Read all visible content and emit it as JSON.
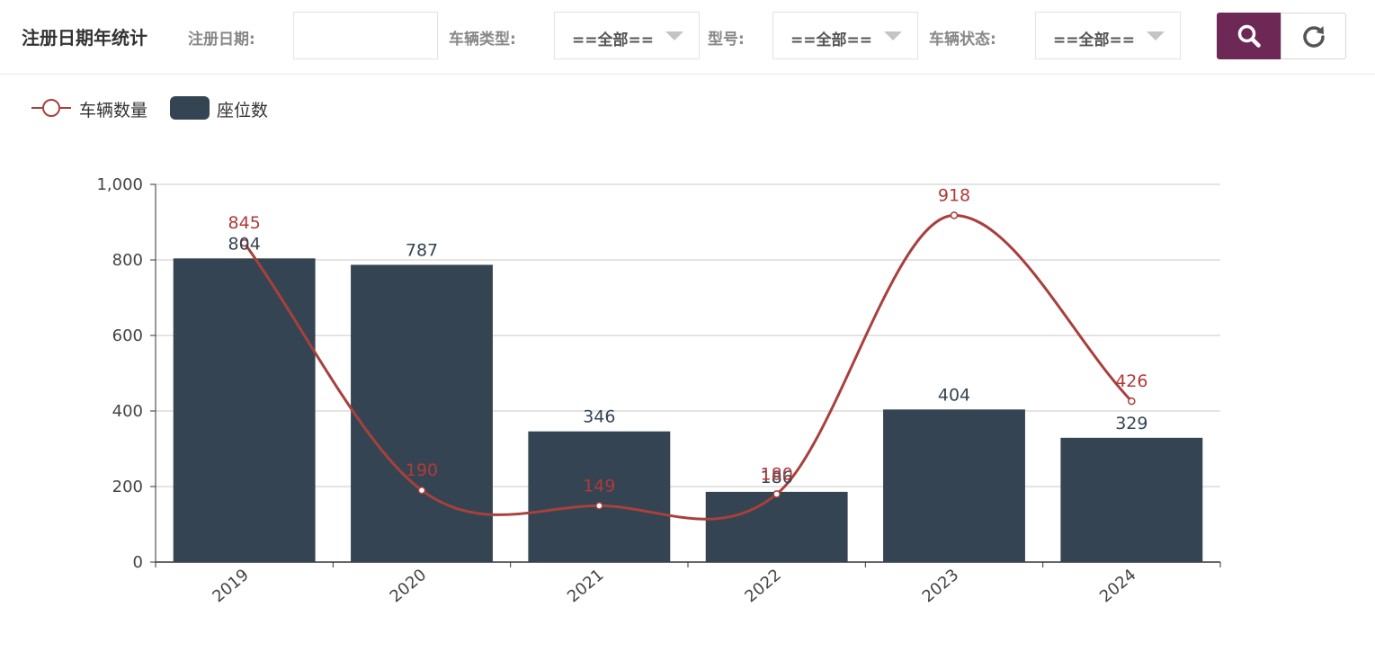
{
  "header": {
    "title": "注册日期年统计",
    "filters": {
      "reg_date_label": "注册日期:",
      "reg_date_value": "",
      "vehicle_type_label": "车辆类型:",
      "vehicle_type_value": "==全部==",
      "model_label": "型号:",
      "model_value": "==全部==",
      "vehicle_status_label": "车辆状态:",
      "vehicle_status_value": "==全部=="
    },
    "buttons": {
      "search_icon": "search-icon",
      "reset_icon": "refresh-icon"
    }
  },
  "colors": {
    "bar": "#344453",
    "line": "#a8403c",
    "accent": "#6d2856"
  },
  "legend": {
    "line_label": "车辆数量",
    "bar_label": "座位数"
  },
  "chart_data": {
    "type": "bar",
    "categories": [
      "2019",
      "2020",
      "2021",
      "2022",
      "2023",
      "2024"
    ],
    "series": [
      {
        "name": "座位数",
        "type": "bar",
        "values": [
          804,
          787,
          346,
          186,
          404,
          329
        ]
      },
      {
        "name": "车辆数量",
        "type": "line",
        "smooth": true,
        "values": [
          845,
          190,
          149,
          180,
          918,
          426
        ]
      }
    ],
    "ylim": [
      0,
      1000
    ],
    "yticks": [
      "0",
      "200",
      "400",
      "600",
      "800",
      "1,000"
    ],
    "grid": true,
    "legend_position": "top-left"
  }
}
